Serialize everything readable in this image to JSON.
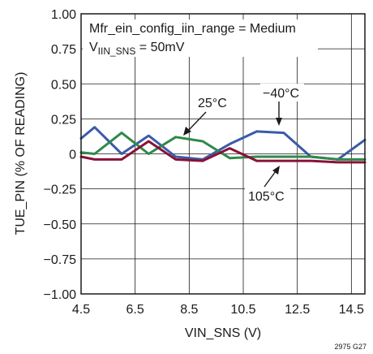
{
  "chart_data": {
    "type": "line",
    "title": "",
    "xlabel": "VIN_SNS (V)",
    "ylabel": "TUE_PIN (% OF READING)",
    "xlim": [
      4.5,
      15
    ],
    "ylim": [
      -1.0,
      1.0
    ],
    "x_ticks": [
      "4.5",
      "6.5",
      "8.5",
      "10.5",
      "12.5",
      "14.5"
    ],
    "x_tick_values": [
      4.5,
      6.5,
      8.5,
      10.5,
      12.5,
      14.5
    ],
    "y_ticks": [
      "1.00",
      "0.75",
      "0.50",
      "0.25",
      "0",
      "−0.25",
      "−0.50",
      "−0.75",
      "−1.00"
    ],
    "y_tick_values": [
      1.0,
      0.75,
      0.5,
      0.25,
      0,
      -0.25,
      -0.5,
      -0.75,
      -1.0
    ],
    "grid": true,
    "annotations": {
      "config_line1": "Mfr_ein_config_iin_range = Medium",
      "config_line2_prefix": "V",
      "config_line2_sub": "IIN_SNS",
      "config_line2_suffix": " = 50mV",
      "figure_id": "2975 G27"
    },
    "series": [
      {
        "name": "−40°C",
        "color": "#3a5ba8",
        "x": [
          4.5,
          5,
          6,
          7,
          8,
          9,
          10,
          11,
          12,
          13,
          14,
          15
        ],
        "y": [
          0.11,
          0.19,
          0.0,
          0.13,
          -0.02,
          -0.04,
          0.07,
          0.16,
          0.15,
          -0.02,
          -0.04,
          0.1
        ]
      },
      {
        "name": "25°C",
        "color": "#2e8a4a",
        "x": [
          4.5,
          5,
          6,
          7,
          8,
          9,
          10,
          11,
          12,
          13,
          14,
          15
        ],
        "y": [
          0.01,
          0.0,
          0.15,
          0.0,
          0.12,
          0.09,
          -0.03,
          -0.02,
          -0.02,
          -0.02,
          -0.04,
          -0.04
        ]
      },
      {
        "name": "105°C",
        "color": "#8a1236",
        "x": [
          4.5,
          5,
          6,
          7,
          8,
          9,
          10,
          11,
          12,
          13,
          14,
          15
        ],
        "y": [
          -0.02,
          -0.04,
          -0.04,
          0.09,
          -0.04,
          -0.05,
          0.04,
          -0.05,
          -0.05,
          -0.05,
          -0.06,
          -0.06
        ]
      }
    ]
  }
}
